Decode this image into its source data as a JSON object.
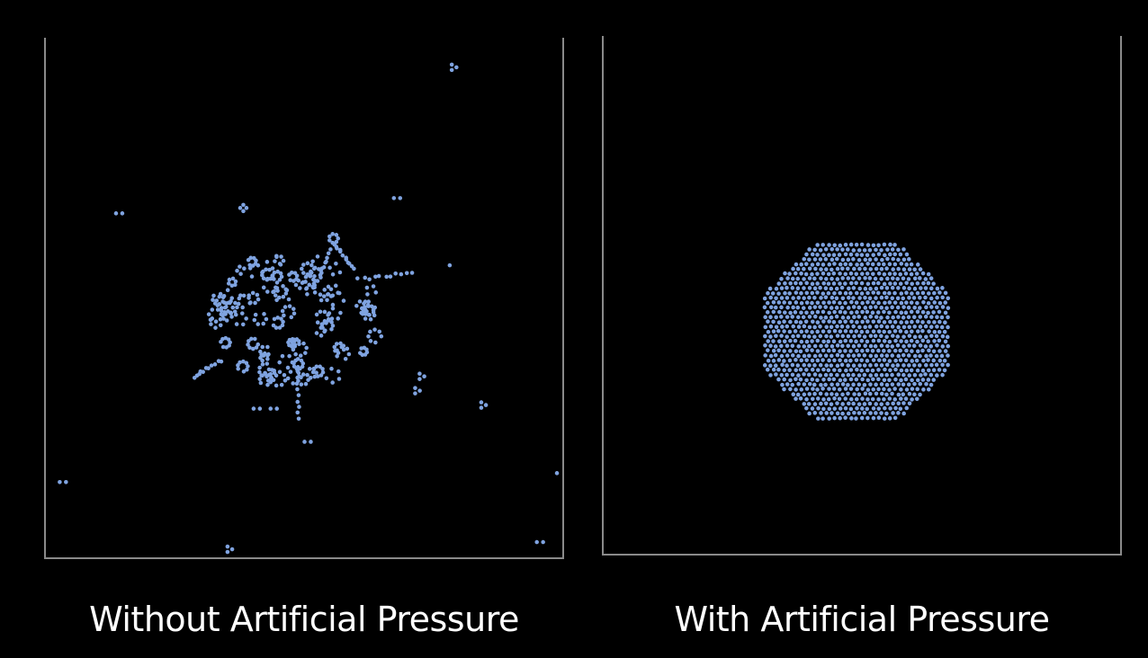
{
  "panels": [
    {
      "id": "without",
      "caption": "Without Artificial Pressure",
      "particle_color": "#7fa3e0"
    },
    {
      "id": "with",
      "caption": "With Artificial Pressure",
      "particle_color": "#7fa3e0"
    }
  ]
}
